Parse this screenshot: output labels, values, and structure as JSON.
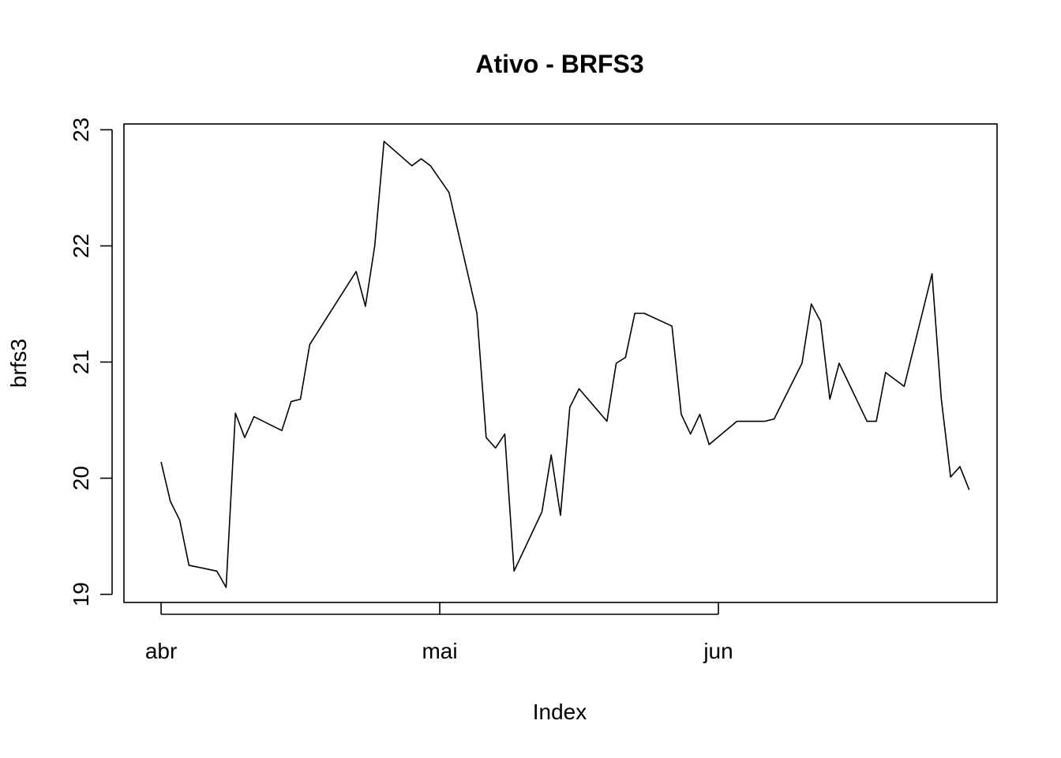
{
  "chart_data": {
    "type": "line",
    "title": "Ativo - BRFS3",
    "xlabel": "Index",
    "ylabel": "brfs3",
    "x_tick_labels": [
      "abr",
      "mai",
      "jun"
    ],
    "x_tick_dates": [
      "2018-04-02",
      "2018-05-02",
      "2018-06-01"
    ],
    "y_ticks": [
      19,
      20,
      21,
      22,
      23
    ],
    "ylim": [
      18.93,
      23.05
    ],
    "xlim": [
      "2018-03-29",
      "2018-07-01"
    ],
    "grid": false,
    "legend": "none",
    "color": "#000000",
    "series": [
      {
        "points": [
          [
            "2018-04-02",
            20.14
          ],
          [
            "2018-04-03",
            19.8
          ],
          [
            "2018-04-04",
            19.64
          ],
          [
            "2018-04-05",
            19.25
          ],
          [
            "2018-04-08",
            19.2
          ],
          [
            "2018-04-09",
            19.06
          ],
          [
            "2018-04-10",
            20.56
          ],
          [
            "2018-04-11",
            20.35
          ],
          [
            "2018-04-12",
            20.53
          ],
          [
            "2018-04-15",
            20.41
          ],
          [
            "2018-04-16",
            20.66
          ],
          [
            "2018-04-17",
            20.68
          ],
          [
            "2018-04-18",
            21.15
          ],
          [
            "2018-04-23",
            21.78
          ],
          [
            "2018-04-24",
            21.48
          ],
          [
            "2018-04-25",
            22.0
          ],
          [
            "2018-04-26",
            22.9
          ],
          [
            "2018-04-29",
            22.69
          ],
          [
            "2018-04-30",
            22.75
          ],
          [
            "2018-05-01",
            22.69
          ],
          [
            "2018-05-03",
            22.46
          ],
          [
            "2018-05-06",
            21.42
          ],
          [
            "2018-05-07",
            20.35
          ],
          [
            "2018-05-08",
            20.26
          ],
          [
            "2018-05-09",
            20.38
          ],
          [
            "2018-05-10",
            19.2
          ],
          [
            "2018-05-13",
            19.71
          ],
          [
            "2018-05-14",
            20.2
          ],
          [
            "2018-05-15",
            19.68
          ],
          [
            "2018-05-16",
            20.61
          ],
          [
            "2018-05-17",
            20.77
          ],
          [
            "2018-05-20",
            20.49
          ],
          [
            "2018-05-21",
            20.99
          ],
          [
            "2018-05-22",
            21.04
          ],
          [
            "2018-05-23",
            21.42
          ],
          [
            "2018-05-24",
            21.42
          ],
          [
            "2018-05-27",
            21.31
          ],
          [
            "2018-05-28",
            20.55
          ],
          [
            "2018-05-29",
            20.38
          ],
          [
            "2018-05-30",
            20.55
          ],
          [
            "2018-05-31",
            20.29
          ],
          [
            "2018-06-03",
            20.49
          ],
          [
            "2018-06-06",
            20.49
          ],
          [
            "2018-06-07",
            20.51
          ],
          [
            "2018-06-10",
            20.99
          ],
          [
            "2018-06-11",
            21.5
          ],
          [
            "2018-06-12",
            21.35
          ],
          [
            "2018-06-13",
            20.68
          ],
          [
            "2018-06-14",
            20.99
          ],
          [
            "2018-06-17",
            20.49
          ],
          [
            "2018-06-18",
            20.49
          ],
          [
            "2018-06-19",
            20.91
          ],
          [
            "2018-06-21",
            20.79
          ],
          [
            "2018-06-24",
            21.76
          ],
          [
            "2018-06-25",
            20.68
          ],
          [
            "2018-06-26",
            20.01
          ],
          [
            "2018-06-27",
            20.1
          ],
          [
            "2018-06-28",
            19.9
          ]
        ]
      }
    ]
  }
}
